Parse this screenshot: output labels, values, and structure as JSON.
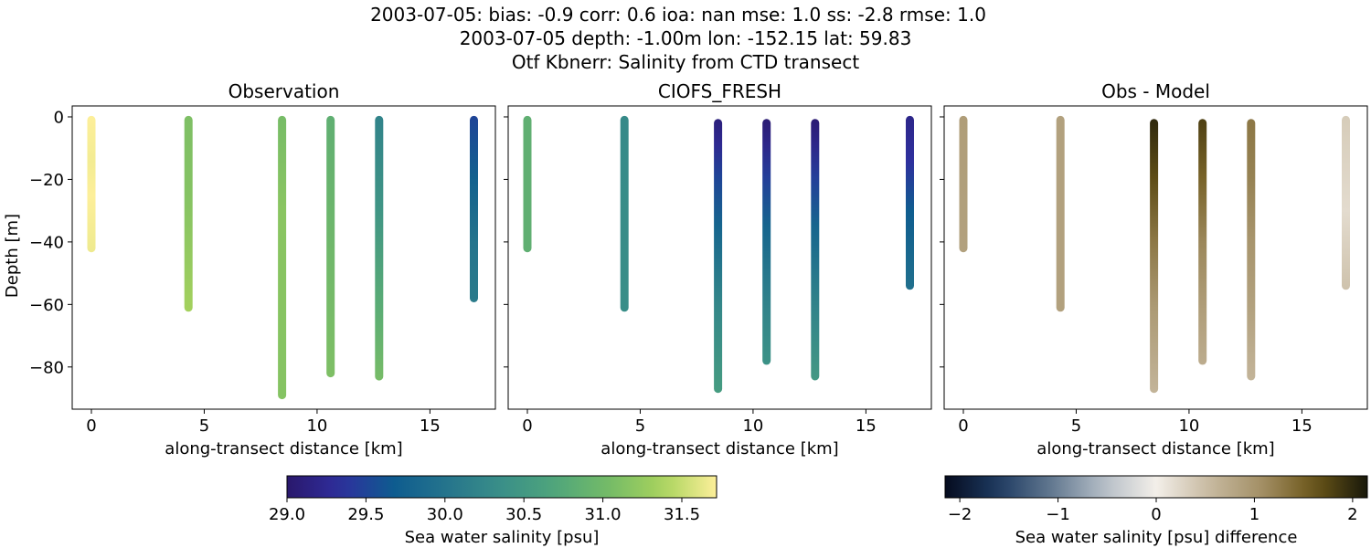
{
  "titles": [
    "2003-07-05: bias: -0.9  corr: 0.6  ioa: nan  mse: 1.0  ss: -2.8  rmse: 1.0",
    "2003-07-05 depth: -1.00m lon: -152.15 lat: 59.83",
    "Otf Kbnerr: Salinity from CTD transect"
  ],
  "chart_data": [
    {
      "type": "scatter",
      "title": "Observation",
      "xlabel": "along-transect distance [km]",
      "ylabel": "Depth [m]",
      "xlim": [
        -0.85,
        17.9
      ],
      "ylim": [
        -93.5,
        3.5
      ],
      "xticks": [
        0,
        5,
        10,
        15
      ],
      "yticks": [
        0,
        -20,
        -40,
        -60,
        -80
      ],
      "grid": false,
      "colormap": "haline",
      "profiles": [
        {
          "x": 0.0,
          "top": -1,
          "bottom": -42,
          "stops": [
            [
              0,
              31.72
            ],
            [
              -15,
              31.68
            ],
            [
              -25,
              31.72
            ],
            [
              -42,
              31.66
            ]
          ]
        },
        {
          "x": 4.3,
          "top": -1,
          "bottom": -61,
          "stops": [
            [
              0,
              31.1
            ],
            [
              -25,
              31.15
            ],
            [
              -45,
              31.25
            ],
            [
              -61,
              31.35
            ]
          ]
        },
        {
          "x": 8.45,
          "top": -1,
          "bottom": -89,
          "stops": [
            [
              0,
              31.05
            ],
            [
              -30,
              31.18
            ],
            [
              -89,
              31.15
            ]
          ]
        },
        {
          "x": 10.6,
          "top": -1,
          "bottom": -82,
          "stops": [
            [
              0,
              30.85
            ],
            [
              -30,
              30.95
            ],
            [
              -82,
              31.1
            ]
          ]
        },
        {
          "x": 12.75,
          "top": -1,
          "bottom": -83,
          "stops": [
            [
              0,
              30.2
            ],
            [
              -30,
              30.45
            ],
            [
              -60,
              30.8
            ],
            [
              -83,
              31.05
            ]
          ]
        },
        {
          "x": 16.95,
          "top": -1,
          "bottom": -58,
          "stops": [
            [
              0,
              29.5
            ],
            [
              -20,
              29.75
            ],
            [
              -40,
              30.0
            ],
            [
              -58,
              30.1
            ]
          ]
        }
      ]
    },
    {
      "type": "scatter",
      "title": "CIOFS_FRESH",
      "xlabel": "along-transect distance [km]",
      "ylabel": "",
      "xlim": [
        -0.85,
        17.9
      ],
      "ylim": [
        -93.5,
        3.5
      ],
      "xticks": [
        0,
        5,
        10,
        15
      ],
      "yticks": [
        0,
        -20,
        -40,
        -60,
        -80
      ],
      "grid": false,
      "colormap": "haline",
      "profiles": [
        {
          "x": 0.0,
          "top": -1,
          "bottom": -42,
          "stops": [
            [
              0,
              30.85
            ],
            [
              -42,
              30.85
            ]
          ]
        },
        {
          "x": 4.3,
          "top": -1,
          "bottom": -61,
          "stops": [
            [
              0,
              30.3
            ],
            [
              -61,
              30.35
            ]
          ]
        },
        {
          "x": 8.45,
          "top": -2,
          "bottom": -87,
          "stops": [
            [
              -2,
              29.1
            ],
            [
              -10,
              29.25
            ],
            [
              -20,
              29.5
            ],
            [
              -35,
              29.8
            ],
            [
              -60,
              30.25
            ],
            [
              -87,
              30.55
            ]
          ]
        },
        {
          "x": 10.6,
          "top": -2,
          "bottom": -78,
          "stops": [
            [
              -2,
              29.05
            ],
            [
              -10,
              29.2
            ],
            [
              -20,
              29.45
            ],
            [
              -35,
              29.8
            ],
            [
              -60,
              30.2
            ],
            [
              -78,
              30.4
            ]
          ]
        },
        {
          "x": 12.75,
          "top": -2,
          "bottom": -83,
          "stops": [
            [
              -2,
              29.05
            ],
            [
              -10,
              29.2
            ],
            [
              -20,
              29.45
            ],
            [
              -35,
              29.8
            ],
            [
              -60,
              30.2
            ],
            [
              -83,
              30.5
            ]
          ]
        },
        {
          "x": 16.95,
          "top": -1,
          "bottom": -54,
          "stops": [
            [
              0,
              29.2
            ],
            [
              -15,
              29.35
            ],
            [
              -30,
              29.7
            ],
            [
              -54,
              29.95
            ]
          ]
        }
      ]
    },
    {
      "type": "scatter",
      "title": "Obs - Model",
      "xlabel": "along-transect distance [km]",
      "ylabel": "",
      "xlim": [
        -0.85,
        17.9
      ],
      "ylim": [
        -93.5,
        3.5
      ],
      "xticks": [
        0,
        5,
        10,
        15
      ],
      "yticks": [
        0,
        -20,
        -40,
        -60,
        -80
      ],
      "grid": false,
      "colormap": "diff",
      "profiles": [
        {
          "x": 0.0,
          "top": -1,
          "bottom": -42,
          "stops": [
            [
              0,
              0.9
            ],
            [
              -42,
              0.85
            ]
          ]
        },
        {
          "x": 4.3,
          "top": -1,
          "bottom": -61,
          "stops": [
            [
              0,
              0.85
            ],
            [
              -61,
              0.85
            ]
          ]
        },
        {
          "x": 8.45,
          "top": -2,
          "bottom": -87,
          "stops": [
            [
              -2,
              2.0
            ],
            [
              -20,
              1.7
            ],
            [
              -40,
              1.3
            ],
            [
              -60,
              0.95
            ],
            [
              -87,
              0.6
            ]
          ]
        },
        {
          "x": 10.6,
          "top": -2,
          "bottom": -78,
          "stops": [
            [
              -2,
              1.8
            ],
            [
              -20,
              1.5
            ],
            [
              -40,
              1.15
            ],
            [
              -60,
              0.9
            ],
            [
              -78,
              0.7
            ]
          ]
        },
        {
          "x": 12.75,
          "top": -2,
          "bottom": -83,
          "stops": [
            [
              -2,
              1.3
            ],
            [
              -20,
              1.2
            ],
            [
              -40,
              1.0
            ],
            [
              -60,
              0.85
            ],
            [
              -83,
              0.6
            ]
          ]
        },
        {
          "x": 16.95,
          "top": -1,
          "bottom": -54,
          "stops": [
            [
              0,
              0.35
            ],
            [
              -30,
              0.2
            ],
            [
              -54,
              0.45
            ]
          ]
        }
      ]
    }
  ],
  "colorbars": [
    {
      "label": "Sea water salinity [psu]",
      "range": [
        29.0,
        31.72
      ],
      "ticks": [
        29.0,
        29.5,
        30.0,
        30.5,
        31.0,
        31.5
      ],
      "tick_labels": [
        "29.0",
        "29.5",
        "30.0",
        "30.5",
        "31.0",
        "31.5"
      ],
      "colormap": "haline"
    },
    {
      "label": "Sea water salinity [psu] difference",
      "range": [
        -2.15,
        2.15
      ],
      "ticks": [
        -2,
        -1,
        0,
        1,
        2
      ],
      "tick_labels": [
        "−2",
        "−1",
        "0",
        "1",
        "2"
      ],
      "colormap": "diff"
    }
  ],
  "colormaps": {
    "haline": [
      "#2a186c",
      "#2f2f9e",
      "#0e5c8f",
      "#26758c",
      "#3a8f88",
      "#4fa67b",
      "#75bb67",
      "#a8d35c",
      "#fdef9a"
    ],
    "diff": [
      "#050b1e",
      "#1d3a61",
      "#61778f",
      "#b4bdc6",
      "#f3efe9",
      "#c7b9a0",
      "#a38f65",
      "#6b5618",
      "#18180a"
    ]
  }
}
